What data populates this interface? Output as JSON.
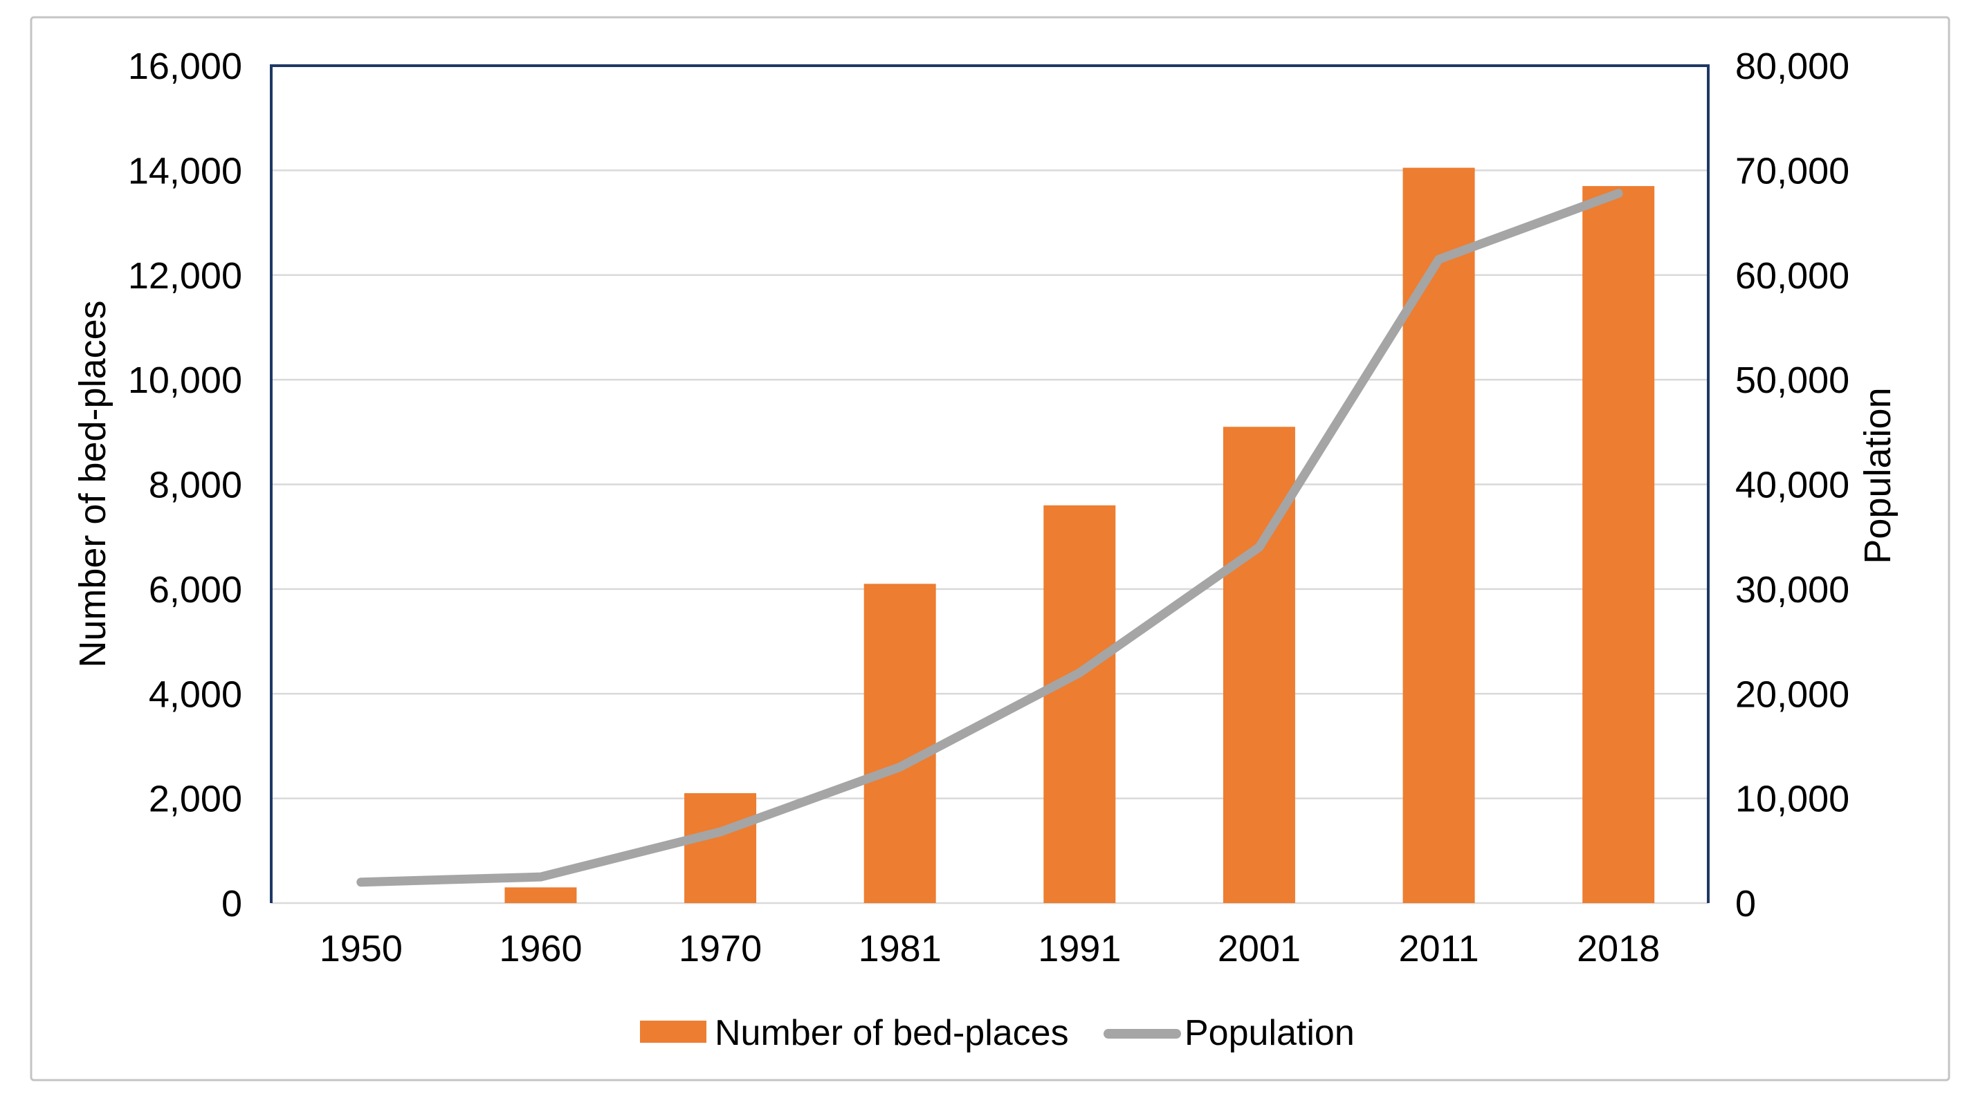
{
  "figure": {
    "background": "#FFFFFF",
    "outer_border_color": "#C4C4C4"
  },
  "chart_data": {
    "type": "combo",
    "title": "",
    "categories": [
      "1950",
      "1960",
      "1970",
      "1981",
      "1991",
      "2001",
      "2011",
      "2018"
    ],
    "series": [
      {
        "name": "Number of bed-places",
        "chart": "bar",
        "axis": "left",
        "color": "#ED7D31",
        "values": [
          0,
          300,
          2100,
          6100,
          7600,
          9100,
          14050,
          13700
        ]
      },
      {
        "name": "Population",
        "chart": "line",
        "axis": "right",
        "color": "#A5A5A5",
        "values": [
          2000,
          2500,
          6800,
          13000,
          22000,
          34000,
          61500,
          67800
        ]
      }
    ],
    "left_axis": {
      "title": "Number of bed-places",
      "min": 0,
      "max": 16000,
      "step": 2000,
      "tick_labels": [
        "0",
        "2,000",
        "4,000",
        "6,000",
        "8,000",
        "10,000",
        "12,000",
        "14,000",
        "16,000"
      ]
    },
    "right_axis": {
      "title": "Population",
      "min": 0,
      "max": 80000,
      "step": 10000,
      "tick_labels": [
        "0",
        "10,000",
        "20,000",
        "30,000",
        "40,000",
        "50,000",
        "60,000",
        "70,000",
        "80,000"
      ]
    },
    "legend": {
      "position": "bottom",
      "items": [
        {
          "label": "Number of bed-places",
          "marker": "rect",
          "color": "#ED7D31"
        },
        {
          "label": "Population",
          "marker": "line",
          "color": "#A5A5A5"
        }
      ]
    },
    "grid": {
      "show": true,
      "color": "#D9D9D9"
    },
    "plot_border_color": "#1F3864",
    "baseline_color": "#D9D9D9",
    "text_color": "#000000"
  }
}
